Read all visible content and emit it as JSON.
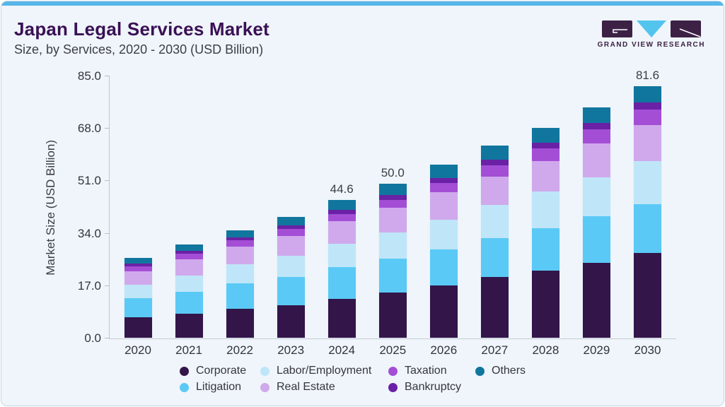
{
  "header": {
    "title": "Japan Legal Services Market",
    "subtitle": "Size, by Services, 2020 - 2030 (USD Billion)"
  },
  "logo": {
    "brand": "GRAND VIEW RESEARCH"
  },
  "colors": {
    "card_background": "#eff5fa",
    "top_strip": "#57b6e8",
    "title": "#3a1055",
    "axis_line": "#c6cbd3",
    "logo_mark": "#3c2145",
    "logo_triangle": "#53c4ee"
  },
  "chart_data": {
    "type": "bar",
    "stacked": true,
    "title": "Japan Legal Services Market Size, by Services, 2020 - 2030 (USD Billion)",
    "xlabel": "",
    "ylabel": "Market Size (USD Billion)",
    "ylim": [
      0,
      85
    ],
    "grid": false,
    "legend_position": "bottom",
    "yticks": [
      {
        "label": "0.0",
        "value": 0
      },
      {
        "label": "17.0",
        "value": 17
      },
      {
        "label": "34.0",
        "value": 34
      },
      {
        "label": "51.0",
        "value": 51
      },
      {
        "label": "68.0",
        "value": 68
      },
      {
        "label": "85.0",
        "value": 85
      }
    ],
    "categories": [
      "2020",
      "2021",
      "2022",
      "2023",
      "2024",
      "2025",
      "2026",
      "2027",
      "2028",
      "2029",
      "2030"
    ],
    "series": [
      {
        "name": "Corporate",
        "slug": "corporate",
        "color": "#331549",
        "values": [
          6.6,
          7.8,
          9.4,
          10.6,
          12.6,
          14.6,
          16.9,
          19.6,
          21.8,
          24.4,
          27.6
        ]
      },
      {
        "name": "Litigation",
        "slug": "litigation",
        "color": "#5bc9f5",
        "values": [
          6.3,
          7.1,
          8.2,
          9.1,
          10.3,
          11.1,
          11.8,
          12.6,
          13.7,
          15.0,
          15.7
        ]
      },
      {
        "name": "Labor/Employment",
        "slug": "labor-employment",
        "color": "#bfe6f8",
        "values": [
          4.4,
          5.2,
          6.2,
          6.9,
          7.5,
          8.5,
          9.6,
          10.9,
          12.0,
          12.6,
          13.9
        ]
      },
      {
        "name": "Real Estate",
        "slug": "real-estate",
        "color": "#d0a9ec",
        "values": [
          4.3,
          5.3,
          5.7,
          6.4,
          7.3,
          7.9,
          8.8,
          9.2,
          9.8,
          11.0,
          11.7
        ]
      },
      {
        "name": "Taxation",
        "slug": "taxation",
        "color": "#a44ed6",
        "values": [
          1.6,
          1.8,
          2.1,
          2.3,
          2.5,
          2.5,
          3.1,
          3.7,
          4.0,
          4.6,
          5.2
        ]
      },
      {
        "name": "Bankruptcy",
        "slug": "bankruptcy",
        "color": "#6a21a5",
        "values": [
          0.8,
          0.9,
          1.0,
          1.1,
          1.3,
          1.8,
          1.7,
          1.8,
          1.9,
          2.0,
          2.3
        ]
      },
      {
        "name": "Others",
        "slug": "others",
        "color": "#11769e",
        "values": [
          1.9,
          2.1,
          2.3,
          2.7,
          3.1,
          3.6,
          4.2,
          4.5,
          4.8,
          5.1,
          5.2
        ]
      }
    ],
    "totals": [
      25.9,
      30.2,
      34.9,
      39.1,
      44.6,
      50.0,
      56.1,
      62.3,
      68.0,
      74.7,
      81.6
    ],
    "annotations": [
      {
        "category": "2024",
        "label": "44.6"
      },
      {
        "category": "2025",
        "label": "50.0"
      },
      {
        "category": "2030",
        "label": "81.6"
      }
    ],
    "legend_items": [
      {
        "label": "Corporate",
        "color": "#331549"
      },
      {
        "label": "Labor/Employment",
        "color": "#bfe6f8"
      },
      {
        "label": "Taxation",
        "color": "#a44ed6"
      },
      {
        "label": "Others",
        "color": "#11769e"
      },
      {
        "label": "Litigation",
        "color": "#5bc9f5"
      },
      {
        "label": "Real Estate",
        "color": "#d0a9ec"
      },
      {
        "label": "Bankruptcy",
        "color": "#6a21a5"
      }
    ]
  }
}
